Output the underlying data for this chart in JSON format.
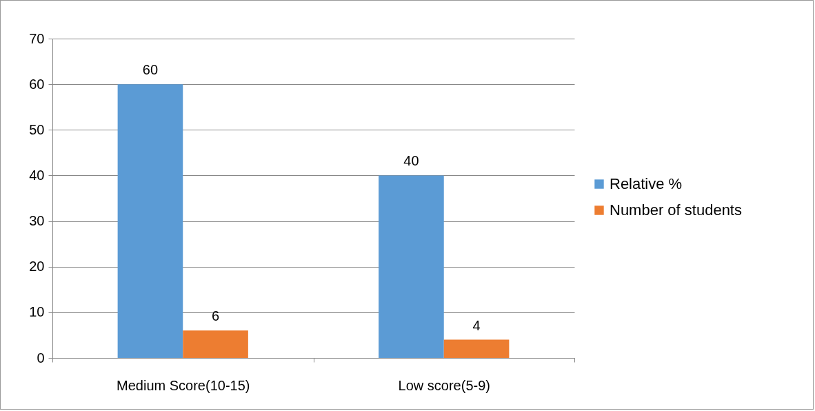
{
  "chart_data": {
    "type": "bar",
    "categories": [
      "Medium Score(10-15)",
      "Low score(5-9)"
    ],
    "series": [
      {
        "name": "Relative %",
        "color": "#5b9bd5",
        "values": [
          60,
          40
        ]
      },
      {
        "name": "Number of students",
        "color": "#ed7d31",
        "values": [
          6,
          4
        ]
      }
    ],
    "ylim": [
      0,
      70
    ],
    "yticks": [
      0,
      10,
      20,
      30,
      40,
      50,
      60,
      70
    ],
    "grid": "y",
    "legend": "right",
    "data_labels": true
  }
}
